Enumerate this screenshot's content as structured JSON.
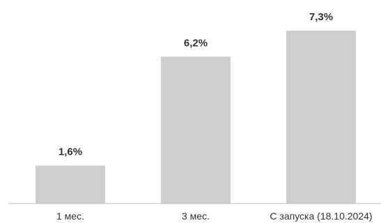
{
  "chart_data": {
    "type": "bar",
    "categories": [
      "1 мес.",
      "3 мес.",
      "С запуска (18.10.2024)"
    ],
    "values": [
      1.6,
      6.2,
      7.3
    ],
    "value_labels": [
      "1,6%",
      "6,2%",
      "7,3%"
    ],
    "title": "",
    "xlabel": "",
    "ylabel": "",
    "ylim": [
      0,
      7.3
    ],
    "grid": false,
    "legend": "none",
    "bar_color": "#cdced0",
    "axis_color": "#bdbdbd",
    "text_color": "#333333"
  }
}
